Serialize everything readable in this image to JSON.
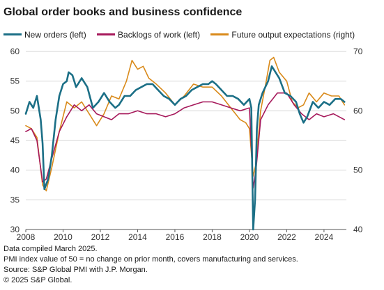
{
  "title": "Global order books and business confidence",
  "notes": [
    "Data compiled March 2025.",
    "PMI index value of 50 = no change on prior month, covers manufacturing and services.",
    "Source: S&P Global PMI with J.P. Morgan.",
    "© 2025 S&P Global."
  ],
  "chart_data": {
    "type": "line",
    "x_ticks": [
      "2008",
      "2010",
      "2012",
      "2014",
      "2016",
      "2018",
      "2020",
      "2022",
      "2024"
    ],
    "xlim": [
      2008,
      2025.2
    ],
    "y_left": {
      "ticks": [
        "30",
        "35",
        "40",
        "45",
        "50",
        "55",
        "60"
      ],
      "ylim": [
        30,
        60
      ]
    },
    "y_right": {
      "ticks": [
        "40",
        "50",
        "60",
        "70"
      ],
      "ylim": [
        40,
        70
      ]
    },
    "grid": "horizontal",
    "legend_placement": "top",
    "series": [
      {
        "name": "New orders (left)",
        "axis": "left",
        "color": "#1b6f86",
        "x": [
          2008.0,
          2008.2,
          2008.4,
          2008.6,
          2008.8,
          2008.9,
          2009.0,
          2009.2,
          2009.4,
          2009.6,
          2009.8,
          2010.0,
          2010.2,
          2010.3,
          2010.5,
          2010.7,
          2011.0,
          2011.3,
          2011.6,
          2011.9,
          2012.2,
          2012.5,
          2012.8,
          2013.0,
          2013.3,
          2013.6,
          2013.9,
          2014.2,
          2014.5,
          2014.8,
          2015.1,
          2015.4,
          2015.7,
          2016.0,
          2016.3,
          2016.6,
          2016.9,
          2017.2,
          2017.5,
          2017.8,
          2018.0,
          2018.2,
          2018.5,
          2018.8,
          2019.1,
          2019.4,
          2019.7,
          2020.0,
          2020.1,
          2020.2,
          2020.3,
          2020.4,
          2020.5,
          2020.7,
          2021.0,
          2021.2,
          2021.4,
          2021.6,
          2021.9,
          2022.2,
          2022.5,
          2022.7,
          2022.9,
          2023.1,
          2023.4,
          2023.7,
          2024.0,
          2024.3,
          2024.6,
          2024.9,
          2025.1
        ],
        "y": [
          49.5,
          51.5,
          50.5,
          52.5,
          48.5,
          44.5,
          36.8,
          38.5,
          42.5,
          48.5,
          52.5,
          54.5,
          55.0,
          56.5,
          56.0,
          54.0,
          55.5,
          54.0,
          50.5,
          51.5,
          53.0,
          51.5,
          50.5,
          51.0,
          52.5,
          52.5,
          53.5,
          54.0,
          54.5,
          54.5,
          53.5,
          52.5,
          52.0,
          51.0,
          52.0,
          52.5,
          53.5,
          54.0,
          54.5,
          54.5,
          55.0,
          54.5,
          53.5,
          52.5,
          52.5,
          52.0,
          51.0,
          52.0,
          50.5,
          30.0,
          35.0,
          47.0,
          51.0,
          53.0,
          55.0,
          57.5,
          56.5,
          55.5,
          53.0,
          52.5,
          51.5,
          49.5,
          48.0,
          49.0,
          51.5,
          50.5,
          51.5,
          51.0,
          52.0,
          52.0,
          51.5
        ]
      },
      {
        "name": "Backlogs of work (left)",
        "axis": "left",
        "color": "#a6195b",
        "x": [
          2008.0,
          2008.3,
          2008.6,
          2008.9,
          2009.1,
          2009.4,
          2009.8,
          2010.2,
          2010.6,
          2011.0,
          2011.4,
          2011.8,
          2012.2,
          2012.6,
          2013.0,
          2013.5,
          2014.0,
          2014.5,
          2015.0,
          2015.5,
          2016.0,
          2016.5,
          2017.0,
          2017.5,
          2018.0,
          2018.5,
          2019.0,
          2019.5,
          2020.0,
          2020.2,
          2020.35,
          2020.6,
          2021.0,
          2021.5,
          2022.0,
          2022.4,
          2022.8,
          2023.2,
          2023.6,
          2024.0,
          2024.5,
          2025.1
        ],
        "y": [
          46.5,
          47.0,
          45.0,
          38.0,
          38.5,
          42.0,
          46.5,
          49.0,
          51.0,
          50.0,
          51.0,
          49.5,
          49.0,
          48.5,
          49.5,
          49.5,
          50.0,
          49.5,
          49.5,
          49.0,
          49.5,
          50.5,
          51.0,
          51.5,
          51.5,
          51.0,
          50.5,
          50.0,
          50.5,
          37.0,
          40.0,
          48.5,
          51.0,
          53.0,
          53.0,
          51.0,
          49.5,
          48.5,
          49.5,
          49.0,
          49.5,
          48.5
        ]
      },
      {
        "name": "Future output expectations (right)",
        "axis": "right",
        "color": "#d98a1a",
        "x": [
          2008.0,
          2008.3,
          2008.6,
          2008.9,
          2009.1,
          2009.4,
          2009.8,
          2010.2,
          2010.6,
          2011.0,
          2011.4,
          2011.8,
          2012.2,
          2012.6,
          2013.0,
          2013.4,
          2013.7,
          2014.0,
          2014.3,
          2014.6,
          2015.0,
          2015.5,
          2016.0,
          2016.5,
          2017.0,
          2017.5,
          2018.0,
          2018.5,
          2019.0,
          2019.5,
          2019.8,
          2020.0,
          2020.2,
          2020.35,
          2020.6,
          2020.9,
          2021.1,
          2021.3,
          2021.6,
          2022.0,
          2022.3,
          2022.6,
          2022.9,
          2023.2,
          2023.6,
          2024.0,
          2024.4,
          2024.8,
          2025.1
        ],
        "y": [
          57.5,
          57.0,
          55.5,
          47.5,
          46.5,
          50.5,
          56.5,
          61.5,
          60.5,
          61.5,
          59.5,
          57.5,
          59.5,
          62.5,
          62.0,
          65.0,
          68.5,
          67.0,
          67.5,
          65.5,
          64.5,
          63.0,
          61.0,
          62.5,
          64.5,
          64.0,
          64.0,
          62.5,
          60.5,
          58.5,
          58.0,
          57.0,
          49.0,
          51.0,
          60.0,
          65.0,
          68.5,
          69.0,
          66.5,
          65.0,
          61.5,
          60.5,
          61.0,
          63.0,
          61.5,
          63.0,
          62.5,
          62.5,
          61.0
        ]
      }
    ]
  }
}
